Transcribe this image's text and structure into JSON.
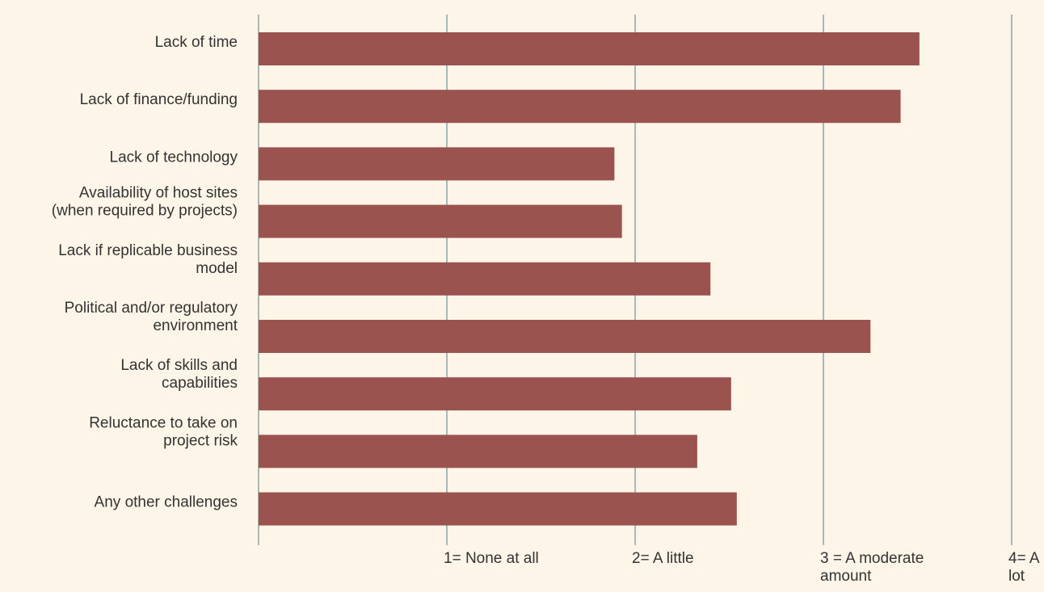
{
  "chart_data": {
    "type": "bar",
    "orientation": "horizontal",
    "categories": [
      "Lack of time",
      "Lack of finance/funding",
      "Lack of technology",
      "Availability of host sites (when required by projects)",
      "Lack if replicable business model",
      "Political and/or regulatory environment",
      "Lack of skills and capabilities",
      "Reluctance to take on project risk",
      "Any other challenges"
    ],
    "category_lines": [
      [
        "Lack of time"
      ],
      [
        "Lack of finance/funding"
      ],
      [
        "Lack of technology"
      ],
      [
        "Availability of host sites",
        "(when required by projects)"
      ],
      [
        "Lack if replicable business",
        "model"
      ],
      [
        "Political and/or regulatory",
        "environment"
      ],
      [
        "Lack of skills and",
        "capabilities"
      ],
      [
        "Reluctance to take on",
        "project risk"
      ],
      [
        "Any other challenges"
      ]
    ],
    "values": [
      3.51,
      3.41,
      1.89,
      1.93,
      2.4,
      3.25,
      2.51,
      2.33,
      2.54
    ],
    "xlim": [
      0,
      4
    ],
    "xticks": [
      {
        "value": 0,
        "lines": []
      },
      {
        "value": 1,
        "lines": [
          "1= None at all"
        ]
      },
      {
        "value": 2,
        "lines": [
          "2= A little"
        ]
      },
      {
        "value": 3,
        "lines": [
          "3 = A moderate",
          "amount"
        ]
      },
      {
        "value": 4,
        "lines": [
          "4= A",
          "lot"
        ]
      }
    ],
    "grid": true,
    "legend": "none",
    "title": "",
    "xlabel": "",
    "ylabel": "",
    "colors": {
      "bar": "#9b5350",
      "gridline": "#4d7e86",
      "text": "#333333",
      "background": "#fdf5e8"
    }
  }
}
